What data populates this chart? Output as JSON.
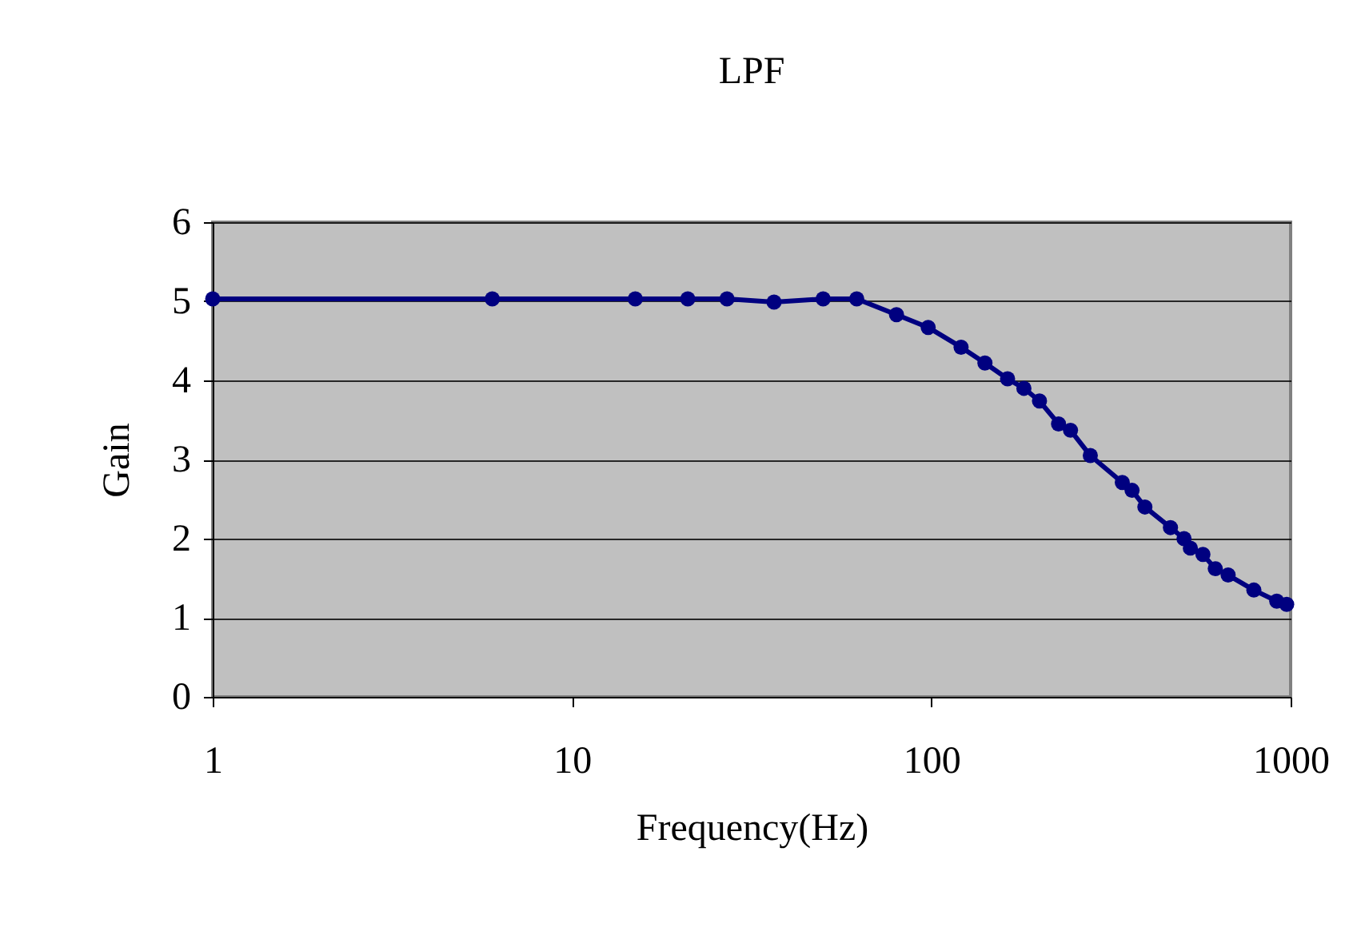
{
  "chart_data": {
    "type": "line",
    "title": "LPF",
    "xlabel": "Frequency(Hz)",
    "ylabel": "Gain",
    "x": [
      1,
      6,
      15,
      21,
      27,
      36.5,
      50,
      62,
      80,
      98,
      121,
      141,
      163,
      181,
      200,
      226,
      244,
      277,
      340,
      362,
      393,
      463,
      505,
      526,
      570,
      617,
      670,
      790,
      915,
      975
    ],
    "series": [
      {
        "color": "#000080",
        "values": [
          5.03,
          5.03,
          5.03,
          5.03,
          5.03,
          4.99,
          5.03,
          5.03,
          4.83,
          4.67,
          4.42,
          4.22,
          4.02,
          3.9,
          3.74,
          3.45,
          3.37,
          3.05,
          2.71,
          2.61,
          2.4,
          2.14,
          2.0,
          1.88,
          1.8,
          1.62,
          1.54,
          1.35,
          1.21,
          1.17
        ]
      }
    ],
    "log": "x",
    "xlim": [
      1,
      1000
    ],
    "xticks": [
      1,
      10,
      100,
      1000
    ],
    "ylim": [
      0,
      6
    ],
    "yticks": [
      0,
      1,
      2,
      3,
      4,
      5,
      6
    ],
    "grid": "y",
    "legend": false,
    "marker": "circle",
    "line_style": "solid"
  }
}
